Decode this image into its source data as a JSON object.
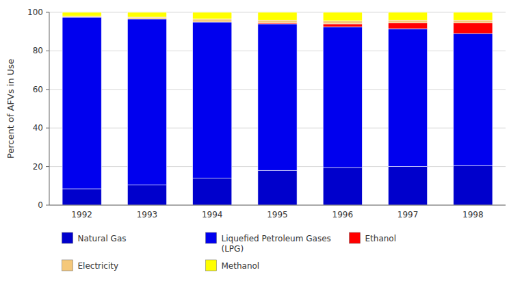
{
  "chart_data": {
    "type": "bar",
    "stacked": true,
    "categories": [
      "1992",
      "1993",
      "1994",
      "1995",
      "1996",
      "1997",
      "1998"
    ],
    "series": [
      {
        "name": "Natural Gas",
        "color": "#0000CC",
        "values": [
          8.5,
          10.5,
          14.0,
          18.0,
          19.5,
          20.0,
          20.5
        ]
      },
      {
        "name": "Liquefied Petroleum Gases\n(LPG)",
        "color": "#0000EE",
        "values": [
          89.0,
          86.0,
          81.0,
          76.0,
          73.0,
          71.5,
          68.5
        ]
      },
      {
        "name": "Ethanol",
        "color": "#FF0000",
        "values": [
          0.0,
          0.0,
          0.0,
          0.5,
          1.5,
          3.0,
          5.5
        ]
      },
      {
        "name": "Electricity",
        "color": "#F5C87A",
        "values": [
          0.5,
          1.0,
          1.5,
          1.5,
          1.5,
          1.5,
          1.5
        ]
      },
      {
        "name": "Methanol",
        "color": "#FFFF00",
        "values": [
          2.0,
          2.5,
          3.5,
          4.0,
          4.5,
          4.0,
          4.0
        ]
      }
    ],
    "ylabel": "Percent of AFVs in Use",
    "ylim": [
      0,
      100
    ],
    "yticks": [
      0,
      20,
      40,
      60,
      80,
      100
    ],
    "grid": true,
    "legend": "bottom"
  }
}
